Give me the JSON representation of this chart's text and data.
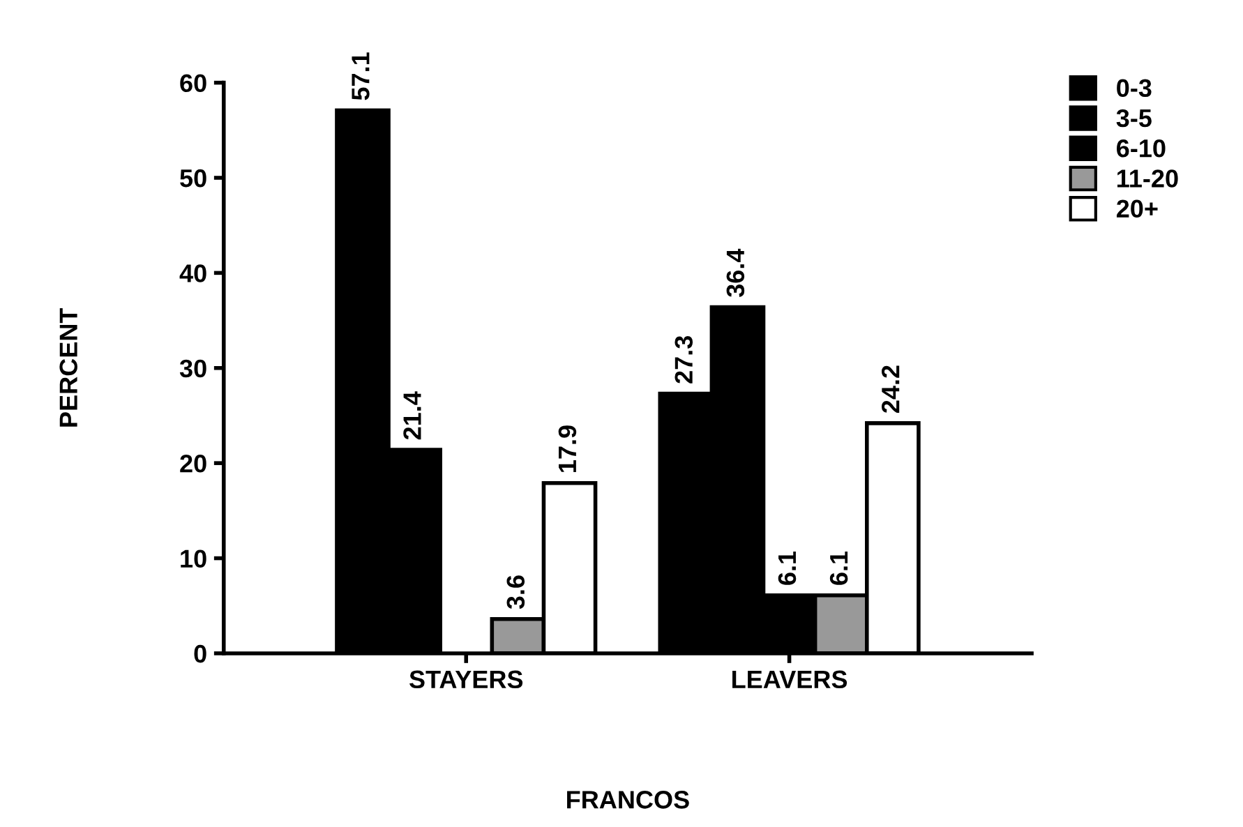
{
  "chart_data": {
    "type": "bar",
    "xlabel": "FRANCOS",
    "ylabel": "PERCENT",
    "categories": [
      "STAYERS",
      "LEAVERS"
    ],
    "series": [
      {
        "name": "0-3",
        "color": "#000000",
        "values": [
          57.1,
          27.3
        ]
      },
      {
        "name": "3-5",
        "color": "#000000",
        "values": [
          21.4,
          36.4
        ]
      },
      {
        "name": "6-10",
        "color": "#000000",
        "values": [
          null,
          6.1
        ]
      },
      {
        "name": "11-20",
        "color": "#999999",
        "values": [
          3.6,
          6.1
        ]
      },
      {
        "name": "20+",
        "color": "#ffffff",
        "values": [
          17.9,
          24.2
        ]
      }
    ],
    "ylim": [
      0,
      60
    ],
    "yticks": [
      0,
      10,
      20,
      30,
      40,
      50,
      60
    ],
    "data_labels": true,
    "legend": "top right",
    "grid": false
  }
}
